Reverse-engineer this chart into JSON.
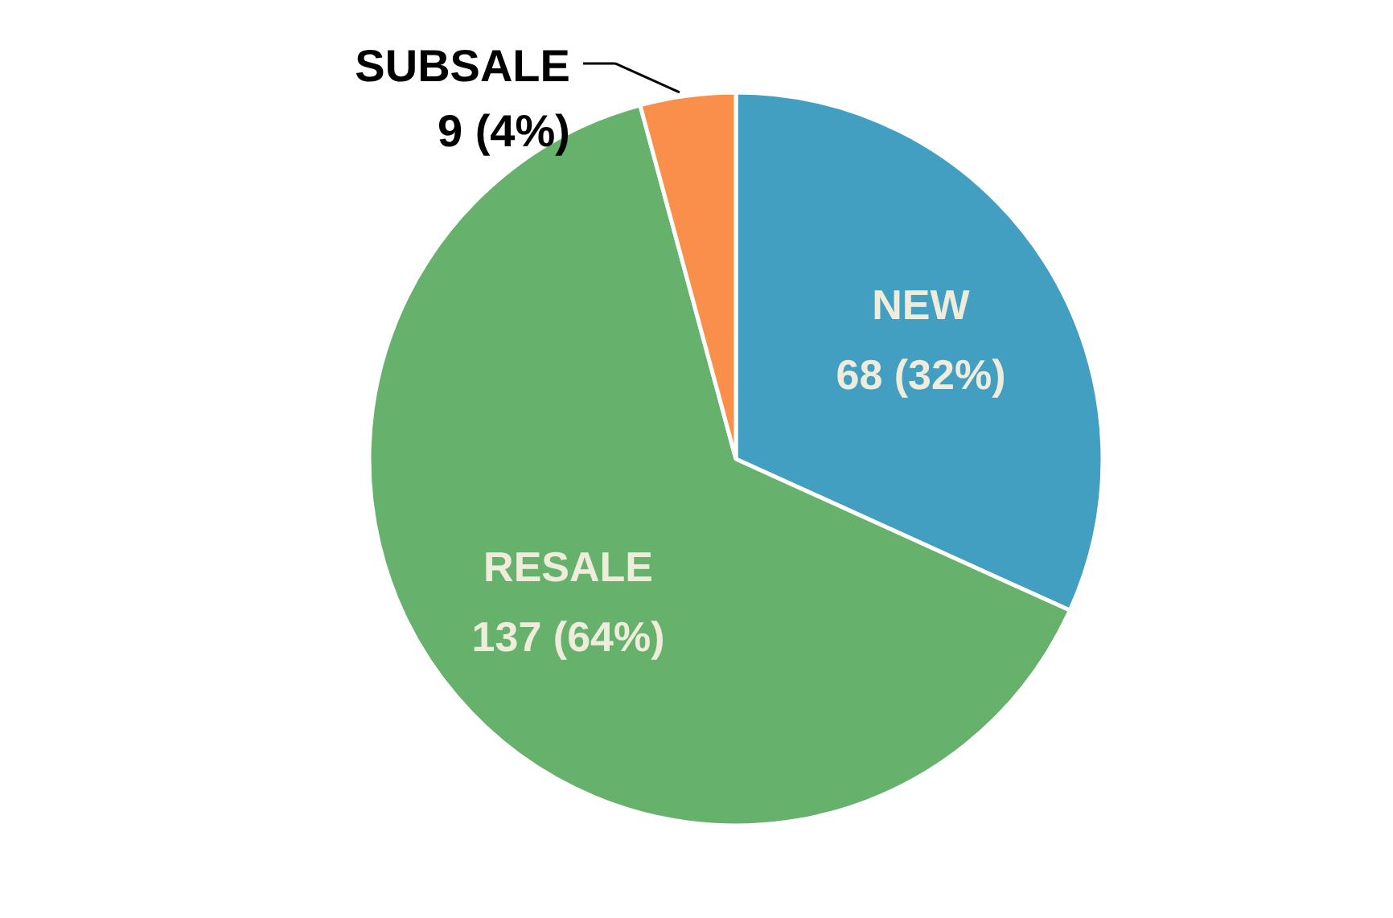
{
  "chart_data": {
    "type": "pie",
    "categories": [
      "NEW",
      "RESALE",
      "SUBSALE"
    ],
    "values": [
      68,
      137,
      9
    ],
    "colors": [
      "#429fc1",
      "#66b16b",
      "#f98f4b"
    ],
    "value_labels": [
      "68 (32%)",
      "137 (64%)",
      "9 (4%)"
    ]
  }
}
